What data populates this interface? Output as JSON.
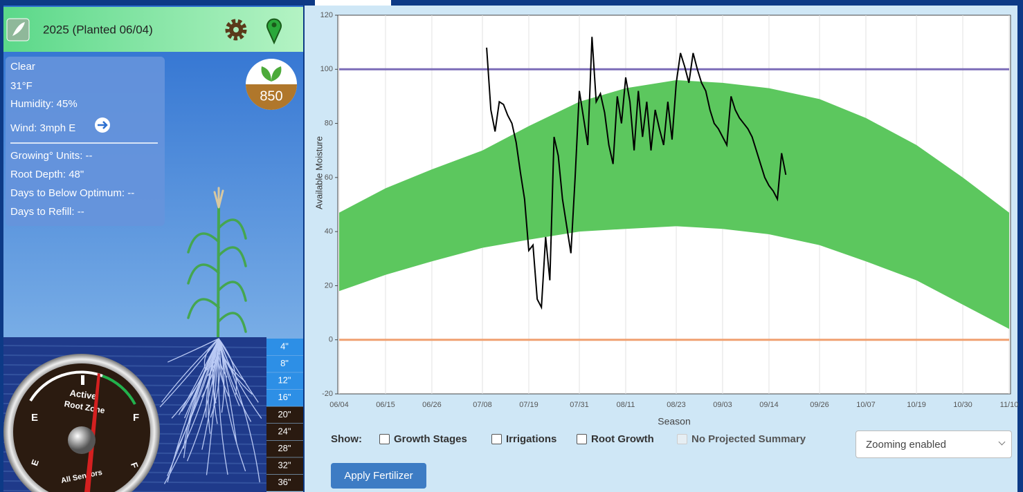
{
  "header": {
    "title": "2025 (Planted 06/04)"
  },
  "weather": {
    "lines": [
      "Clear",
      "31°F",
      "Humidity: 45%",
      "Wind: 3mph E"
    ],
    "stats": [
      "Growing° Units: --",
      "Root Depth: 48\"",
      "Days to Below Optimum: --",
      "Days to Refill: --"
    ]
  },
  "badge": "850",
  "depths": [
    "4\"",
    "8\"",
    "12\"",
    "16\"",
    "20\"",
    "24\"",
    "28\"",
    "32\"",
    "36\""
  ],
  "gauge": {
    "active": "Active",
    "root_zone": "Root Zone",
    "all_sensors": "All Sensors",
    "left_top": "E",
    "right_top": "F",
    "left_bottom": "E",
    "right_bottom": "F"
  },
  "chart_data": {
    "type": "line",
    "x_label": "Season",
    "y_label": "Available Moisture",
    "xlim": [
      "06/04",
      "11/10"
    ],
    "xticks": [
      "06/04",
      "06/15",
      "06/26",
      "07/08",
      "07/19",
      "07/31",
      "08/11",
      "08/23",
      "09/03",
      "09/14",
      "09/26",
      "10/07",
      "10/19",
      "10/30",
      "11/10"
    ],
    "ylim": [
      -20,
      120
    ],
    "yticks": [
      -20,
      0,
      20,
      40,
      60,
      80,
      100,
      120
    ],
    "grid": "x",
    "band": {
      "color": "#5cc75e",
      "x": [
        "06/04",
        "06/15",
        "06/26",
        "07/08",
        "07/19",
        "07/31",
        "08/11",
        "08/23",
        "09/03",
        "09/14",
        "09/26",
        "10/07",
        "10/19",
        "10/30",
        "11/10"
      ],
      "upper": [
        47,
        56,
        63,
        70,
        79,
        88,
        93,
        96,
        95,
        93,
        89,
        82,
        72,
        60,
        47
      ],
      "lower": [
        18,
        24,
        29,
        34,
        37,
        40,
        41,
        42,
        41,
        39,
        35,
        29,
        22,
        13,
        4
      ]
    },
    "reference_lines": [
      {
        "value": 100,
        "color": "#7b6bb8"
      },
      {
        "value": 0,
        "color": "#f0a070"
      }
    ],
    "x": [
      "07/09",
      "07/10",
      "07/11",
      "07/12",
      "07/13",
      "07/14",
      "07/15",
      "07/16",
      "07/17",
      "07/18",
      "07/19",
      "07/20",
      "07/21",
      "07/22",
      "07/23",
      "07/24",
      "07/25",
      "07/26",
      "07/27",
      "07/28",
      "07/29",
      "07/30",
      "07/31",
      "08/01",
      "08/02",
      "08/03",
      "08/04",
      "08/05",
      "08/06",
      "08/07",
      "08/08",
      "08/09",
      "08/10",
      "08/11",
      "08/12",
      "08/13",
      "08/14",
      "08/15",
      "08/16",
      "08/17",
      "08/18",
      "08/19",
      "08/20",
      "08/21",
      "08/22",
      "08/23",
      "08/24",
      "08/25",
      "08/26",
      "08/27",
      "08/28",
      "08/29",
      "08/30",
      "08/31",
      "09/01",
      "09/02",
      "09/03",
      "09/04",
      "09/05",
      "09/06",
      "09/07",
      "09/08",
      "09/09",
      "09/10",
      "09/11",
      "09/12",
      "09/13",
      "09/14",
      "09/15",
      "09/16",
      "09/17",
      "09/18"
    ],
    "series": [
      {
        "color": "#000000",
        "values": [
          108,
          85,
          77,
          88,
          87,
          83,
          80,
          73,
          62,
          52,
          33,
          35,
          15,
          12,
          38,
          22,
          75,
          68,
          52,
          42,
          32,
          60,
          92,
          82,
          72,
          112,
          88,
          91,
          84,
          72,
          65,
          90,
          80,
          97,
          88,
          70,
          92,
          75,
          88,
          70,
          85,
          78,
          72,
          88,
          74,
          95,
          106,
          101,
          95,
          106,
          100,
          95,
          92,
          85,
          80,
          78,
          75,
          72,
          90,
          85,
          82,
          80,
          78,
          75,
          70,
          65,
          60,
          57,
          55,
          52,
          69,
          61
        ]
      }
    ]
  },
  "controls": {
    "show": "Show:",
    "checkboxes": [
      "Growth Stages",
      "Irrigations",
      "Root Growth",
      "No Projected Summary"
    ],
    "select": "Zooming enabled",
    "button": "Apply Fertilizer"
  }
}
